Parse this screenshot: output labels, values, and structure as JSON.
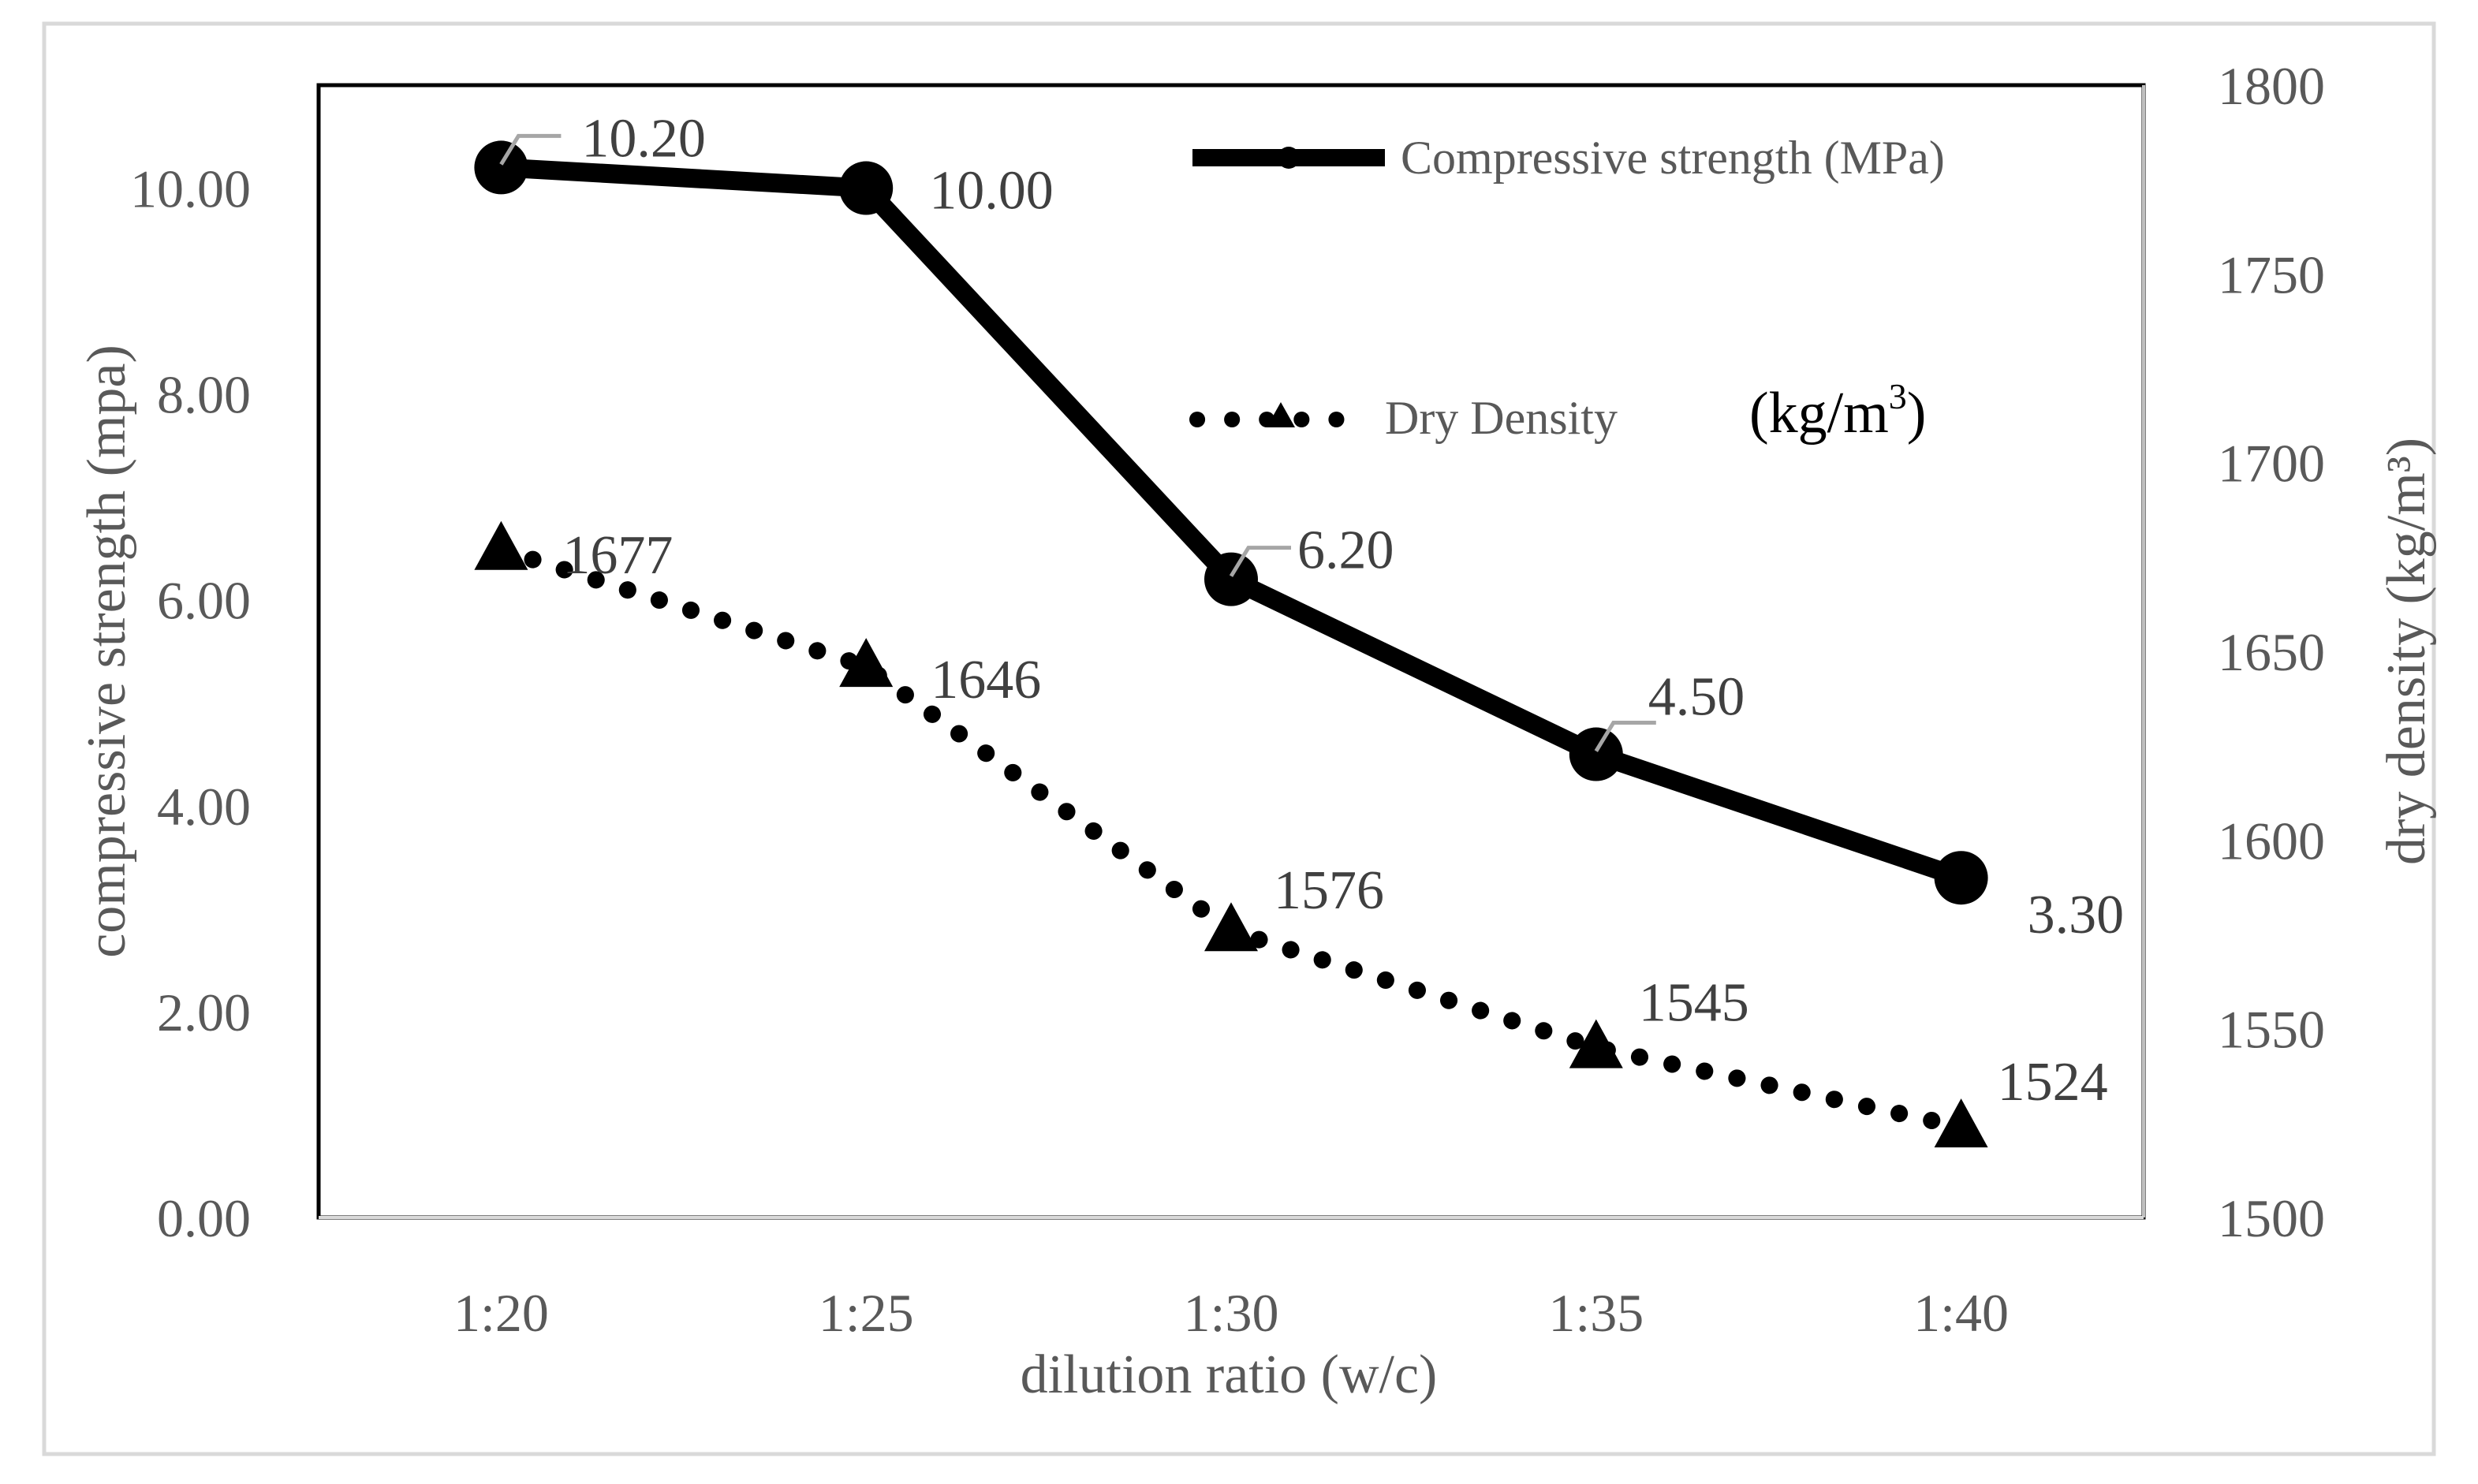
{
  "chart_data": {
    "type": "line",
    "title": "",
    "categories": [
      "1:20",
      "1:25",
      "1:30",
      "1:35",
      "1:40"
    ],
    "xlabel": "dilution ratio (w/c)",
    "ylabel": "compressive strength (mpa)",
    "y2label": "dry density (kg/m³)",
    "ylim": [
      0,
      11
    ],
    "yticks": [
      "0.00",
      "2.00",
      "4.00",
      "6.00",
      "8.00",
      "10.00"
    ],
    "y2lim": [
      1500,
      1800
    ],
    "y2ticks": [
      "1500",
      "1550",
      "1600",
      "1650",
      "1700",
      "1750",
      "1800"
    ],
    "series": [
      {
        "name": "Compressive strength (MPa)",
        "axis": "left",
        "style": "solid",
        "marker": "circle",
        "color": "#000000",
        "values": [
          10.2,
          10.0,
          6.2,
          4.5,
          3.3
        ],
        "labels": [
          "10.20",
          "10.00",
          "6.20",
          "4.50",
          "3.30"
        ]
      },
      {
        "name": "Dry Density",
        "axis": "right",
        "style": "dotted",
        "marker": "triangle",
        "color": "#000000",
        "values": [
          1677,
          1646,
          1576,
          1545,
          1524
        ],
        "labels": [
          "1677",
          "1646",
          "1576",
          "1545",
          "1524"
        ]
      }
    ],
    "annotation": {
      "text": "(kg/m",
      "superscript": "3",
      "close": ")"
    },
    "legend_position": "top-right",
    "grid": false
  }
}
